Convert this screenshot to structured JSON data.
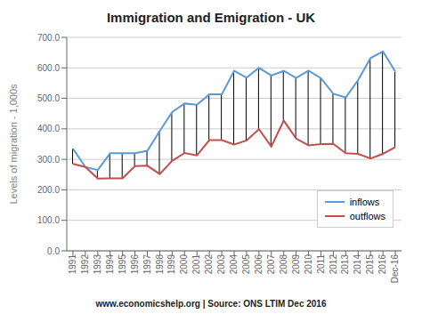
{
  "chart_data": {
    "type": "line",
    "title": "Immigration and Emigration - UK",
    "y_label": "Levels of migration - 1,000s",
    "annotations": [
      "www.economicshelp.org | Source: ONS LTIM Dec 2016"
    ],
    "categories": [
      "1991",
      "1992",
      "1993",
      "1994",
      "1995",
      "1996",
      "1997",
      "1998",
      "1999",
      "2000",
      "2001",
      "2002",
      "2003",
      "2004",
      "2005",
      "2006",
      "2007",
      "2008",
      "2009",
      "2010",
      "2011",
      "2012",
      "2013",
      "2014",
      "2015",
      "2016",
      "Dec-16"
    ],
    "series": [
      {
        "name": "inflows",
        "color": "#5B9BD5",
        "values": [
          335,
          275,
          265,
          320,
          320,
          320,
          328,
          393,
          455,
          483,
          479,
          513,
          513,
          590,
          568,
          600,
          575,
          590,
          567,
          591,
          566,
          515,
          503,
          560,
          632,
          654,
          588
        ]
      },
      {
        "name": "outflows",
        "color": "#C0504D",
        "values": [
          285,
          275,
          237,
          238,
          238,
          278,
          279,
          252,
          295,
          321,
          313,
          363,
          363,
          349,
          362,
          399,
          342,
          427,
          368,
          346,
          350,
          351,
          320,
          318,
          303,
          318,
          340
        ]
      }
    ],
    "ylim": [
      0,
      700
    ],
    "yticks": [
      {
        "value": 0,
        "label": "0.0"
      },
      {
        "value": 100,
        "label": "100.0"
      },
      {
        "value": 200,
        "label": "200.0"
      },
      {
        "value": 300,
        "label": "300.0"
      },
      {
        "value": 400,
        "label": "400.0"
      },
      {
        "value": 500,
        "label": "500.0"
      },
      {
        "value": 600,
        "label": "600.0"
      },
      {
        "value": 700,
        "label": "700.0"
      }
    ],
    "grid": true,
    "legend": "lower right"
  }
}
